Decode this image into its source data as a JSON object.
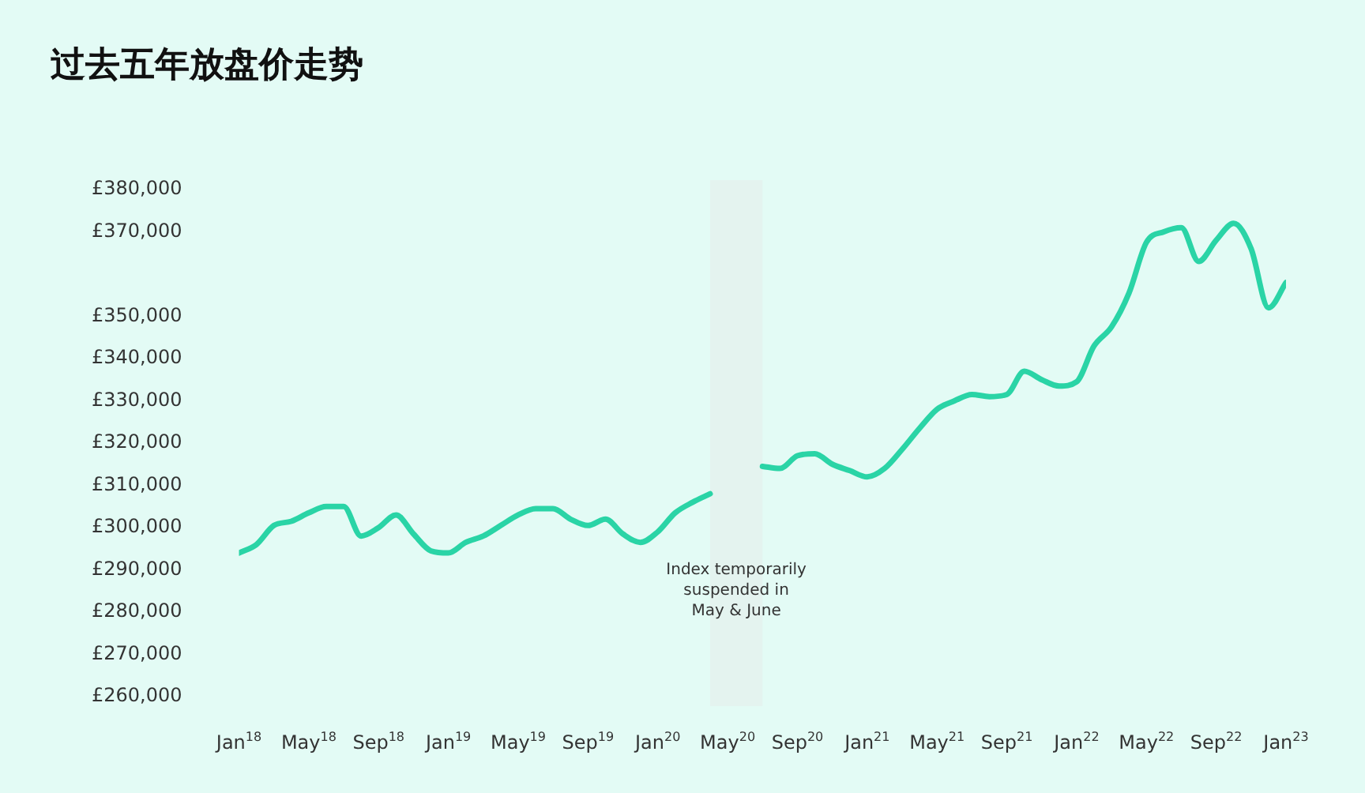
{
  "chart_data": {
    "type": "line",
    "title": "过去五年放盘价走势",
    "x": [
      "2018-01",
      "2018-02",
      "2018-03",
      "2018-04",
      "2018-05",
      "2018-06",
      "2018-07",
      "2018-08",
      "2018-09",
      "2018-10",
      "2018-11",
      "2018-12",
      "2019-01",
      "2019-02",
      "2019-03",
      "2019-04",
      "2019-05",
      "2019-06",
      "2019-07",
      "2019-08",
      "2019-09",
      "2019-10",
      "2019-11",
      "2019-12",
      "2020-01",
      "2020-02",
      "2020-03",
      "2020-04",
      "2020-05",
      "2020-06",
      "2020-07",
      "2020-08",
      "2020-09",
      "2020-10",
      "2020-11",
      "2020-12",
      "2021-01",
      "2021-02",
      "2021-03",
      "2021-04",
      "2021-05",
      "2021-06",
      "2021-07",
      "2021-08",
      "2021-09",
      "2021-10",
      "2021-11",
      "2021-12",
      "2022-01",
      "2022-02",
      "2022-03",
      "2022-04",
      "2022-05",
      "2022-06",
      "2022-07",
      "2022-08",
      "2022-09",
      "2022-10",
      "2022-11",
      "2022-12",
      "2023-01"
    ],
    "values": [
      294000,
      296000,
      300500,
      301500,
      303500,
      305000,
      305000,
      298000,
      300000,
      303000,
      298500,
      294500,
      294000,
      296500,
      298000,
      300500,
      303000,
      304500,
      304500,
      302000,
      300500,
      302000,
      298500,
      296500,
      299000,
      303500,
      306000,
      308000,
      null,
      null,
      314500,
      314000,
      317000,
      317500,
      315000,
      313500,
      312000,
      314000,
      318500,
      323500,
      328000,
      330000,
      331500,
      331000,
      331500,
      337000,
      335000,
      333500,
      334500,
      343000,
      347500,
      355500,
      367500,
      370000,
      371000,
      363000,
      368000,
      372000,
      366000,
      352000,
      358000
    ],
    "color": "#2ad4a6",
    "xlim": [
      "2018-01",
      "2023-01"
    ],
    "xticks": [
      {
        "value": "2018-01",
        "label": "Jan$^{18}$"
      },
      {
        "value": "2018-05",
        "label": "May$^{18}$"
      },
      {
        "value": "2018-09",
        "label": "Sep$^{18}$"
      },
      {
        "value": "2019-01",
        "label": "Jan$^{19}$"
      },
      {
        "value": "2019-05",
        "label": "May$^{19}$"
      },
      {
        "value": "2019-09",
        "label": "Sep$^{19}$"
      },
      {
        "value": "2020-01",
        "label": "Jan$^{20}$"
      },
      {
        "value": "2020-05",
        "label": "May$^{20}$"
      },
      {
        "value": "2020-09",
        "label": "Sep$^{20}$"
      },
      {
        "value": "2021-01",
        "label": "Jan$^{21}$"
      },
      {
        "value": "2021-05",
        "label": "May$^{21}$"
      },
      {
        "value": "2021-09",
        "label": "Sep$^{21}$"
      },
      {
        "value": "2022-01",
        "label": "Jan$^{22}$"
      },
      {
        "value": "2022-05",
        "label": "May$^{22}$"
      },
      {
        "value": "2022-09",
        "label": "Sep$^{22}$"
      },
      {
        "value": "2023-01",
        "label": "Jan$^{23}$"
      }
    ],
    "ylim": [
      260000,
      380000
    ],
    "yticks": [
      {
        "value": 260000,
        "label": "£260,000"
      },
      {
        "value": 270000,
        "label": "£270,000"
      },
      {
        "value": 280000,
        "label": "£280,000"
      },
      {
        "value": 290000,
        "label": "£290,000"
      },
      {
        "value": 300000,
        "label": "£300,000"
      },
      {
        "value": 310000,
        "label": "£310,000"
      },
      {
        "value": 320000,
        "label": "£320,000"
      },
      {
        "value": 330000,
        "label": "£330,000"
      },
      {
        "value": 340000,
        "label": "£340,000"
      },
      {
        "value": 350000,
        "label": "£350,000"
      },
      {
        "value": 370000,
        "label": "£370,000"
      },
      {
        "value": 380000,
        "label": "£380,000"
      }
    ],
    "bands": [
      {
        "axis": "x",
        "from": "2020-04",
        "to": "2020-07",
        "label": "Index temporarily suspended in May & June",
        "color": "#e4f3ef"
      }
    ],
    "grid": false,
    "legend": false,
    "marker": "none"
  }
}
